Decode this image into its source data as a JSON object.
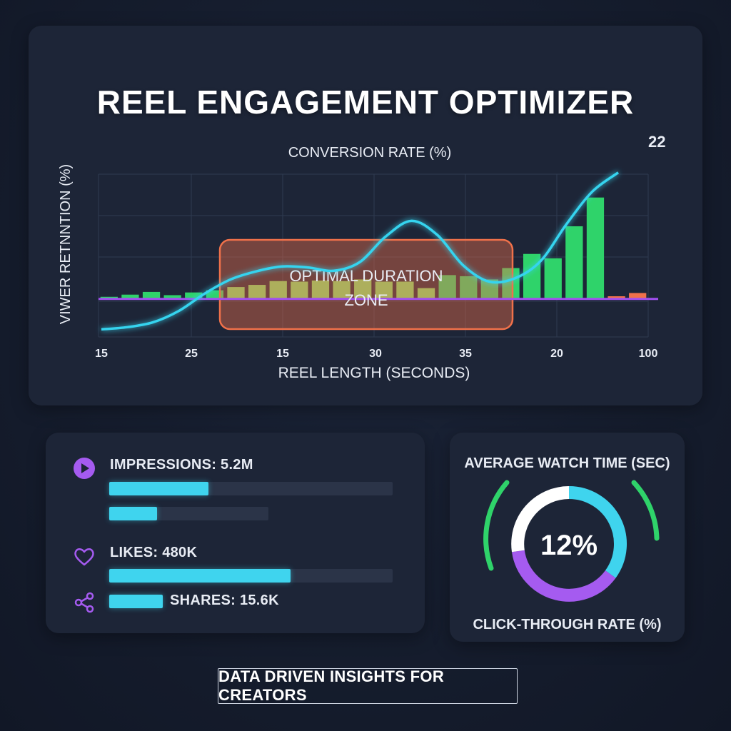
{
  "app_title": "REEL ENGAGEMENT OPTIMIZER",
  "chart_data": {
    "type": "bar",
    "title": "CONVERSION RATE (%)",
    "xlabel": "REEL LENGTH (SECONDS)",
    "ylabel": "VIWER RETNNTION (%)",
    "x_tick_labels": [
      "15",
      "25",
      "15",
      "30",
      "35",
      "20",
      "100"
    ],
    "peak_label": "22",
    "highlight_zone_label": [
      "OPTIMAL DURATION",
      "ZONE"
    ],
    "bar_values": [
      0.4,
      0.8,
      1.3,
      0.7,
      1.2,
      1.6,
      2.2,
      2.6,
      3.3,
      3.2,
      3.4,
      3.3,
      3.6,
      3.2,
      3.2,
      2.0,
      4.4,
      4.2,
      3.6,
      5.7,
      8.3,
      7.5,
      13.4,
      18.7,
      0.5,
      1.1
    ],
    "bar_colors": {
      "normal": "#2fd36a",
      "zone": "#7ddc6a",
      "low": "#f0714a"
    },
    "line_values": [
      -5.6,
      -5.2,
      -4.3,
      -2.2,
      1.0,
      3.6,
      5.1,
      6.0,
      5.8,
      5.2,
      6.8,
      11.5,
      14.4,
      11.8,
      6.2,
      3.2,
      3.8,
      7.0,
      13.8,
      19.8,
      23.3
    ],
    "y_range": [
      -7,
      23
    ],
    "grid": true,
    "accent_line_color": "#35d4ef",
    "baseline_color": "#a24ff0",
    "zone_color": "#f0714a"
  },
  "stats": {
    "impressions": {
      "label": "IMPRESSIONS: 5.2M",
      "fill": 0.35,
      "secondary_fill": 0.3,
      "icon": "play-icon"
    },
    "likes": {
      "label": "LIKES: 480K",
      "fill": 0.64,
      "icon": "heart-icon"
    },
    "shares": {
      "label": "SHARES: 15.6K",
      "fill": 1.0,
      "icon": "share-icon"
    },
    "accent_color": "#3fd4ee",
    "icon_color": "#a55bf0"
  },
  "watch_time": {
    "title": "AVERAGE WATCH TIME (SEC)",
    "center_value": "12%",
    "footer_label": "CLICK-THROUGH RATE (%)",
    "ring_colors": {
      "cyan": "#3fd4ee",
      "purple": "#a55bf0",
      "white": "#ffffff",
      "green": "#2fd36a"
    }
  },
  "tagline": "DATA DRIVEN INSIGHTS FOR CREATORS"
}
